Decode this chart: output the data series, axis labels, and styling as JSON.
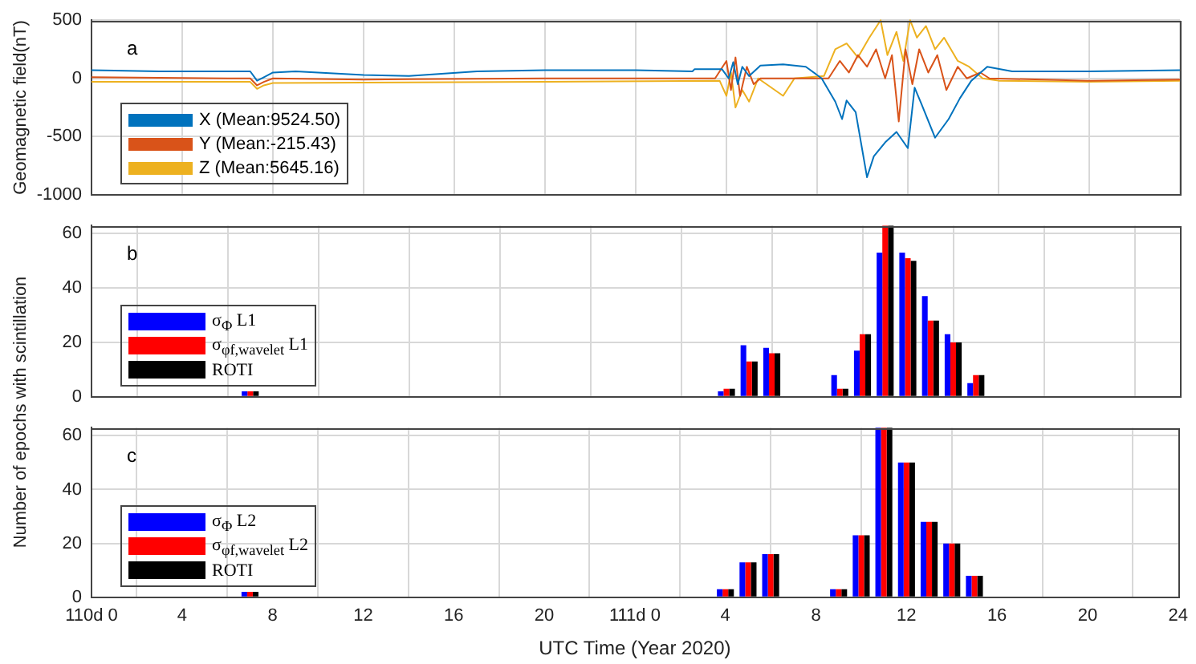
{
  "chart_data": [
    {
      "type": "line",
      "annotations": [
        "a"
      ],
      "ylabel": "Geomagnetic field(nT)",
      "xlim": [
        "2020-04-19T00:00",
        "2020-04-21T00:00"
      ],
      "xticks": [
        {
          "value": "2020-04-19T00:00",
          "label": null
        },
        {
          "value": "2020-04-19T04:00",
          "label": null
        },
        {
          "value": "2020-04-19T08:00",
          "label": null
        },
        {
          "value": "2020-04-19T12:00",
          "label": null
        },
        {
          "value": "2020-04-19T16:00",
          "label": null
        },
        {
          "value": "2020-04-19T20:00",
          "label": null
        },
        {
          "value": "2020-04-20T00:00",
          "label": null
        },
        {
          "value": "2020-04-20T04:00",
          "label": null
        },
        {
          "value": "2020-04-20T08:00",
          "label": null
        },
        {
          "value": "2020-04-20T12:00",
          "label": null
        },
        {
          "value": "2020-04-20T16:00",
          "label": null
        },
        {
          "value": "2020-04-20T20:00",
          "label": null
        },
        {
          "value": "2020-04-21T00:00",
          "label": null
        }
      ],
      "ylim": [
        -1000,
        500
      ],
      "yticks": [
        -1000,
        -500,
        0,
        500
      ],
      "tick_labels": "y",
      "grid": true,
      "legend": "bottom left",
      "marker": "none",
      "line_style": "solid",
      "series": [
        {
          "name": "X (Mean:9524.50)",
          "color": "#0072bd",
          "x": [
            "2020-04-19T00:00",
            "2020-04-19T03:00",
            "2020-04-19T06:00",
            "2020-04-19T07:00",
            "2020-04-19T07:18",
            "2020-04-19T07:36",
            "2020-04-19T08:00",
            "2020-04-19T09:00",
            "2020-04-19T12:00",
            "2020-04-19T14:00",
            "2020-04-19T17:00",
            "2020-04-19T20:00",
            "2020-04-20T00:00",
            "2020-04-20T02:30",
            "2020-04-20T02:36",
            "2020-04-20T03:48",
            "2020-04-20T04:06",
            "2020-04-20T04:18",
            "2020-04-20T04:30",
            "2020-04-20T04:42",
            "2020-04-20T05:00",
            "2020-04-20T05:30",
            "2020-04-20T06:30",
            "2020-04-20T07:30",
            "2020-04-20T08:12",
            "2020-04-20T08:48",
            "2020-04-20T09:06",
            "2020-04-20T09:18",
            "2020-04-20T09:42",
            "2020-04-20T10:12",
            "2020-04-20T10:30",
            "2020-04-20T11:00",
            "2020-04-20T11:30",
            "2020-04-20T12:00",
            "2020-04-20T12:18",
            "2020-04-20T12:36",
            "2020-04-20T13:12",
            "2020-04-20T13:48",
            "2020-04-20T14:18",
            "2020-04-20T14:48",
            "2020-04-20T15:30",
            "2020-04-20T16:36",
            "2020-04-20T20:00",
            "2020-04-21T00:00"
          ],
          "values": [
            70,
            60,
            60,
            60,
            -20,
            10,
            50,
            60,
            30,
            20,
            60,
            70,
            70,
            60,
            80,
            80,
            0,
            140,
            -50,
            100,
            20,
            110,
            120,
            100,
            0,
            -200,
            -350,
            -190,
            -290,
            -850,
            -670,
            -550,
            -460,
            -600,
            -80,
            -220,
            -510,
            -350,
            -170,
            -20,
            100,
            60,
            60,
            70
          ]
        },
        {
          "name": "Y (Mean:-215.43)",
          "color": "#d95319",
          "x": [
            "2020-04-19T00:00",
            "2020-04-19T06:00",
            "2020-04-19T07:00",
            "2020-04-19T07:18",
            "2020-04-19T07:36",
            "2020-04-19T08:00",
            "2020-04-19T12:00",
            "2020-04-19T20:00",
            "2020-04-20T03:30",
            "2020-04-20T04:00",
            "2020-04-20T04:12",
            "2020-04-20T04:24",
            "2020-04-20T04:36",
            "2020-04-20T04:54",
            "2020-04-20T05:12",
            "2020-04-20T05:30",
            "2020-04-20T08:30",
            "2020-04-20T09:00",
            "2020-04-20T09:24",
            "2020-04-20T09:48",
            "2020-04-20T10:12",
            "2020-04-20T10:36",
            "2020-04-20T11:00",
            "2020-04-20T11:18",
            "2020-04-20T11:36",
            "2020-04-20T11:54",
            "2020-04-20T12:12",
            "2020-04-20T12:30",
            "2020-04-20T12:54",
            "2020-04-20T13:18",
            "2020-04-20T13:42",
            "2020-04-20T14:12",
            "2020-04-20T14:36",
            "2020-04-20T15:12",
            "2020-04-20T15:36",
            "2020-04-20T20:00",
            "2020-04-21T00:00"
          ],
          "values": [
            10,
            0,
            0,
            -60,
            -30,
            0,
            -10,
            0,
            0,
            150,
            -100,
            180,
            -150,
            100,
            -50,
            0,
            0,
            150,
            50,
            200,
            100,
            250,
            0,
            200,
            -370,
            250,
            -50,
            250,
            50,
            200,
            -100,
            100,
            0,
            50,
            0,
            -20,
            -10
          ]
        },
        {
          "name": "Z (Mean:5645.16)",
          "color": "#edb120",
          "x": [
            "2020-04-19T00:00",
            "2020-04-19T06:00",
            "2020-04-19T07:00",
            "2020-04-19T07:18",
            "2020-04-19T07:36",
            "2020-04-19T08:00",
            "2020-04-19T20:00",
            "2020-04-20T03:42",
            "2020-04-20T04:00",
            "2020-04-20T04:12",
            "2020-04-20T04:24",
            "2020-04-20T04:42",
            "2020-04-20T05:00",
            "2020-04-20T05:24",
            "2020-04-20T06:30",
            "2020-04-20T07:00",
            "2020-04-20T08:18",
            "2020-04-20T08:48",
            "2020-04-20T09:18",
            "2020-04-20T09:48",
            "2020-04-20T10:18",
            "2020-04-20T10:48",
            "2020-04-20T11:06",
            "2020-04-20T11:30",
            "2020-04-20T11:48",
            "2020-04-20T12:06",
            "2020-04-20T12:24",
            "2020-04-20T12:48",
            "2020-04-20T13:12",
            "2020-04-20T13:36",
            "2020-04-20T14:12",
            "2020-04-20T14:42",
            "2020-04-20T15:18",
            "2020-04-20T16:00",
            "2020-04-20T20:00",
            "2020-04-21T00:00"
          ],
          "values": [
            -30,
            -30,
            -30,
            -90,
            -60,
            -40,
            -30,
            -20,
            -150,
            50,
            -250,
            -100,
            -200,
            0,
            -150,
            0,
            20,
            250,
            300,
            180,
            350,
            500,
            200,
            400,
            150,
            500,
            350,
            450,
            250,
            350,
            150,
            100,
            0,
            -20,
            -30,
            -20
          ]
        }
      ]
    },
    {
      "type": "bar",
      "annotations": [
        "b"
      ],
      "ylabel": "Number of epochs with scintillation",
      "x": [
        "2020-04-19T07:00",
        "2020-04-20T04:00",
        "2020-04-20T05:00",
        "2020-04-20T06:00",
        "2020-04-20T09:00",
        "2020-04-20T10:00",
        "2020-04-20T11:00",
        "2020-04-20T12:00",
        "2020-04-20T13:00",
        "2020-04-20T14:00",
        "2020-04-20T15:00"
      ],
      "xlim": [
        "2020-04-19T00:00",
        "2020-04-21T00:00"
      ],
      "xticks": [
        {
          "value": "2020-04-19T00:00",
          "label": null
        },
        {
          "value": "2020-04-19T04:00",
          "label": null
        },
        {
          "value": "2020-04-19T08:00",
          "label": null
        },
        {
          "value": "2020-04-19T12:00",
          "label": null
        },
        {
          "value": "2020-04-19T16:00",
          "label": null
        },
        {
          "value": "2020-04-19T20:00",
          "label": null
        },
        {
          "value": "2020-04-20T00:00",
          "label": null
        },
        {
          "value": "2020-04-20T04:00",
          "label": null
        },
        {
          "value": "2020-04-20T08:00",
          "label": null
        },
        {
          "value": "2020-04-20T12:00",
          "label": null
        },
        {
          "value": "2020-04-20T16:00",
          "label": null
        },
        {
          "value": "2020-04-20T20:00",
          "label": null
        },
        {
          "value": "2020-04-21T00:00",
          "label": null
        }
      ],
      "ylim": [
        0,
        63
      ],
      "yticks": [
        0,
        20,
        40,
        60
      ],
      "tick_labels": "y",
      "grid": true,
      "legend": "bottom left",
      "series": [
        {
          "name": "σ$_{Φ}$ L1",
          "color": "#0000ff",
          "values": [
            2,
            2,
            19,
            18,
            8,
            17,
            53,
            53,
            37,
            23,
            5
          ]
        },
        {
          "name": "σ$_{φf,wavelet}$ L1",
          "color": "#ff0000",
          "values": [
            2,
            3,
            13,
            16,
            3,
            23,
            63,
            51,
            28,
            20,
            8
          ]
        },
        {
          "name": "ROTI",
          "color": "#000000",
          "values": [
            2,
            3,
            13,
            16,
            3,
            23,
            63,
            50,
            28,
            20,
            8
          ]
        }
      ]
    },
    {
      "type": "bar",
      "annotations": [
        "c"
      ],
      "xlabel": "UTC Time (Year 2020)",
      "x": [
        "2020-04-19T07:00",
        "2020-04-20T04:00",
        "2020-04-20T05:00",
        "2020-04-20T06:00",
        "2020-04-20T09:00",
        "2020-04-20T10:00",
        "2020-04-20T11:00",
        "2020-04-20T12:00",
        "2020-04-20T13:00",
        "2020-04-20T14:00",
        "2020-04-20T15:00"
      ],
      "xlim": [
        "2020-04-19T00:00",
        "2020-04-21T00:00"
      ],
      "xticks": [
        {
          "value": "2020-04-19T00:00",
          "label": "110d 0"
        },
        {
          "value": "2020-04-19T04:00",
          "label": "4"
        },
        {
          "value": "2020-04-19T08:00",
          "label": "8"
        },
        {
          "value": "2020-04-19T12:00",
          "label": "12"
        },
        {
          "value": "2020-04-19T16:00",
          "label": "16"
        },
        {
          "value": "2020-04-19T20:00",
          "label": "20"
        },
        {
          "value": "2020-04-20T00:00",
          "label": "111d 0"
        },
        {
          "value": "2020-04-20T04:00",
          "label": "4"
        },
        {
          "value": "2020-04-20T08:00",
          "label": "8"
        },
        {
          "value": "2020-04-20T12:00",
          "label": "12"
        },
        {
          "value": "2020-04-20T16:00",
          "label": "16"
        },
        {
          "value": "2020-04-20T20:00",
          "label": "20"
        },
        {
          "value": "2020-04-21T00:00",
          "label": "24"
        }
      ],
      "ylim": [
        0,
        63
      ],
      "yticks": [
        0,
        20,
        40,
        60
      ],
      "grid": true,
      "legend": "bottom left",
      "series": [
        {
          "name": "σ$_{Φ}$ L2",
          "color": "#0000ff",
          "values": [
            2,
            3,
            13,
            16,
            3,
            23,
            63,
            50,
            28,
            20,
            8
          ]
        },
        {
          "name": "σ$_{φf,wavelet}$ L2",
          "color": "#ff0000",
          "values": [
            2,
            3,
            13,
            16,
            3,
            23,
            63,
            50,
            28,
            20,
            8
          ]
        },
        {
          "name": "ROTI",
          "color": "#000000",
          "values": [
            2,
            3,
            13,
            16,
            3,
            23,
            63,
            50,
            28,
            20,
            8
          ]
        }
      ]
    }
  ]
}
